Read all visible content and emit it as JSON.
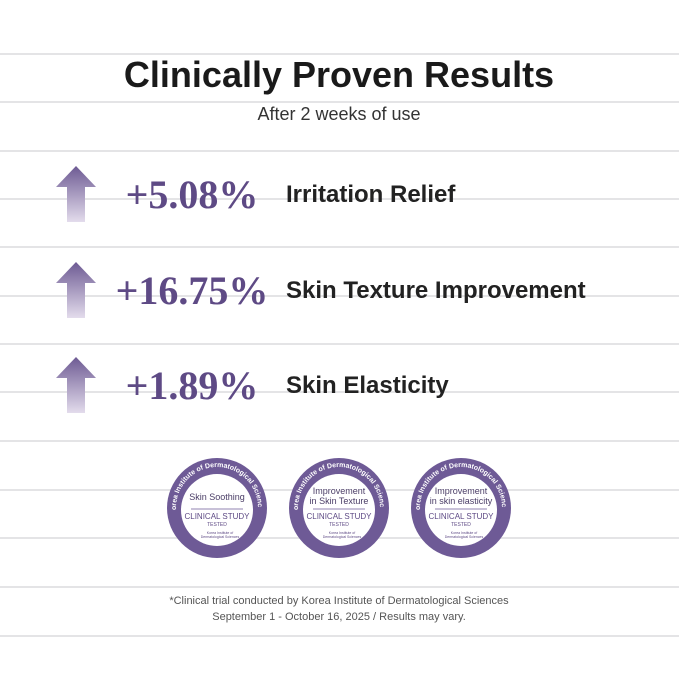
{
  "header": {
    "title": "Clinically Proven Results",
    "subtitle": "After 2 weeks of use"
  },
  "results": [
    {
      "value": "+5.08%",
      "label": "Irritation Relief"
    },
    {
      "value": "+16.75%",
      "label": "Skin Texture Improvement"
    },
    {
      "value": "+1.89%",
      "label": "Skin Elasticity"
    }
  ],
  "badges": [
    {
      "ring": "Korea Institute of Dermatological Sciences",
      "title": [
        "Skin Soothing"
      ],
      "study": "CLINICAL STUDY",
      "tested": "TESTED",
      "institute": [
        "Korea Institute of",
        "Dermatological Sciences"
      ]
    },
    {
      "ring": "Korea Institute of Dermatological Sciences",
      "title": [
        "Improvement",
        "in Skin Texture"
      ],
      "study": "CLINICAL STUDY",
      "tested": "TESTED",
      "institute": [
        "Korea Institute of",
        "Dermatological Sciences"
      ]
    },
    {
      "ring": "Korea Institute of Dermatological Sciences",
      "title": [
        "Improvement",
        "in skin elasticity"
      ],
      "study": "CLINICAL STUDY",
      "tested": "TESTED",
      "institute": [
        "Korea Institute of",
        "Dermatological Sciences"
      ]
    }
  ],
  "footnote": [
    "*Clinical trial conducted by Korea Institute of Dermatological Sciences",
    "September 1 - October 16, 2025 / Results may vary."
  ]
}
